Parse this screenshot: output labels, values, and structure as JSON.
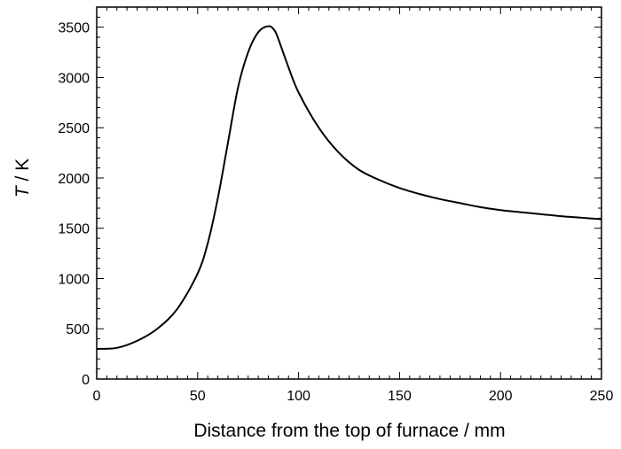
{
  "chart_data": {
    "type": "line",
    "title": "",
    "xlabel": "Distance from the top of furnace / mm",
    "ylabel_symbol": "T",
    "ylabel_unit": " / K",
    "xlim": [
      0,
      250
    ],
    "ylim": [
      0,
      3700
    ],
    "x_ticks": [
      0,
      50,
      100,
      150,
      200,
      250
    ],
    "y_ticks": [
      0,
      500,
      1000,
      1500,
      2000,
      2500,
      3000,
      3500
    ],
    "grid": false,
    "legend": "none",
    "line_color": "#000000",
    "series": [
      {
        "x": [
          0,
          10,
          20,
          30,
          40,
          50,
          55,
          60,
          65,
          70,
          75,
          80,
          85,
          88,
          90,
          95,
          100,
          110,
          120,
          130,
          140,
          150,
          160,
          170,
          180,
          190,
          200,
          210,
          220,
          230,
          240,
          250
        ],
        "values": [
          300,
          310,
          380,
          500,
          700,
          1050,
          1350,
          1800,
          2350,
          2900,
          3250,
          3450,
          3510,
          3470,
          3380,
          3100,
          2850,
          2500,
          2250,
          2080,
          1980,
          1900,
          1840,
          1790,
          1750,
          1710,
          1680,
          1660,
          1640,
          1620,
          1605,
          1590
        ]
      }
    ]
  }
}
